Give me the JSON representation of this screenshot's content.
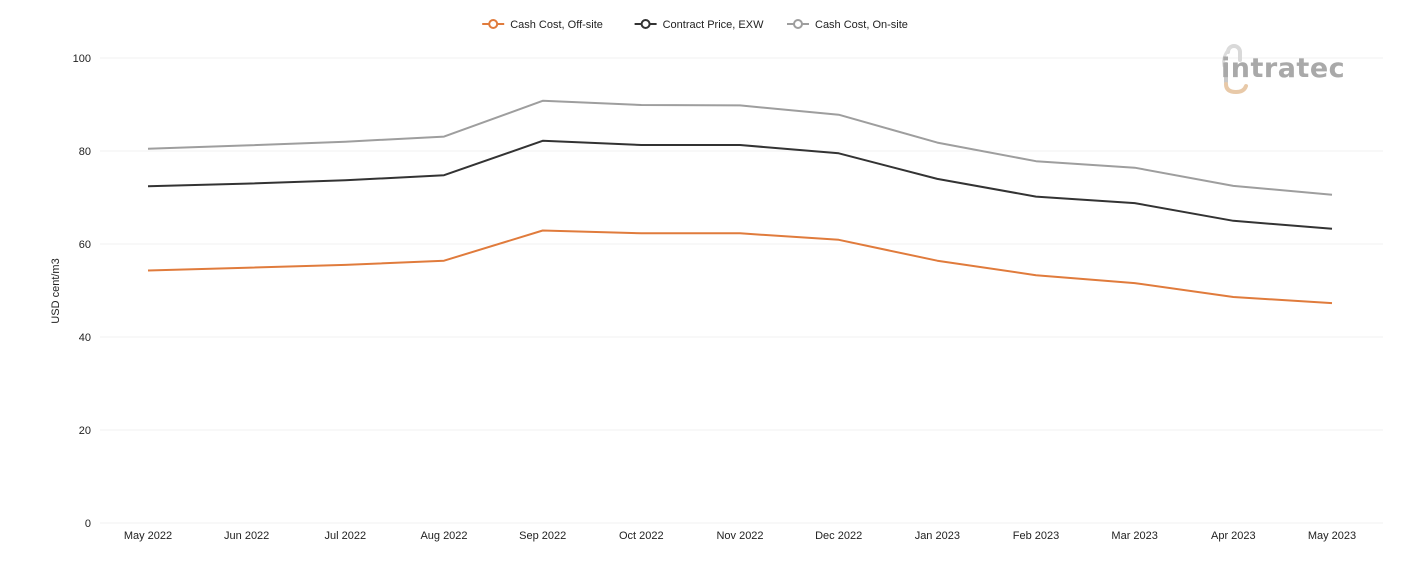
{
  "chart_data": {
    "type": "line",
    "x": [
      "May 2022",
      "Jun 2022",
      "Jul 2022",
      "Aug 2022",
      "Sep 2022",
      "Oct 2022",
      "Nov 2022",
      "Dec 2022",
      "Jan 2023",
      "Feb 2023",
      "Mar 2023",
      "Apr 2023",
      "May 2023"
    ],
    "ylabel": "USD cent/m3",
    "ylim": [
      0,
      100
    ],
    "yticks": [
      0,
      20,
      40,
      60,
      80,
      100
    ],
    "grid": true,
    "legend_position": "top-center",
    "series": [
      {
        "name": "Cash Cost, Off-site",
        "color": "#e07b3c",
        "values": [
          54.3,
          54.9,
          55.5,
          56.4,
          62.9,
          62.3,
          62.3,
          60.9,
          56.4,
          53.3,
          51.6,
          48.6,
          47.3
        ]
      },
      {
        "name": "Contract Price, EXW",
        "color": "#333333",
        "values": [
          72.4,
          73.0,
          73.7,
          74.8,
          82.2,
          81.3,
          81.3,
          79.5,
          74.0,
          70.2,
          68.8,
          65.0,
          63.3
        ]
      },
      {
        "name": "Cash Cost, On-site",
        "color": "#9e9e9e",
        "values": [
          80.5,
          81.2,
          82.0,
          83.1,
          90.8,
          89.9,
          89.8,
          87.8,
          81.8,
          77.8,
          76.4,
          72.5,
          70.6
        ]
      }
    ]
  },
  "logo": {
    "text": "intratec",
    "icon_color": "#e8c9a8",
    "text_color": "#a9a9a9"
  }
}
